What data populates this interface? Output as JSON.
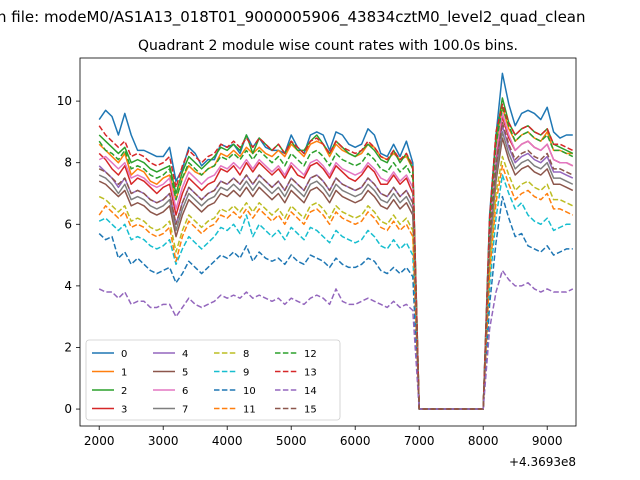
{
  "suptitle": "n file: modeM0/AS1A13_018T01_9000005906_43834cztM0_level2_quad_clean",
  "chart_data": {
    "type": "line",
    "title": "Quadrant 2 module wise count rates with 100.0s bins.",
    "xlabel": "",
    "ylabel": "",
    "x_offset_label": "+4.3693e8",
    "xlim": [
      1700,
      9450
    ],
    "ylim": [
      -0.55,
      11.4
    ],
    "xticks": [
      2000,
      3000,
      4000,
      5000,
      6000,
      7000,
      8000,
      9000
    ],
    "yticks": [
      0,
      2,
      4,
      6,
      8,
      10
    ],
    "grid": false,
    "legend": {
      "placement": "lower-left",
      "ncol": 4
    },
    "gap": {
      "start": 7000,
      "end": 8000,
      "value": 0
    },
    "segments": {
      "seg1": {
        "x_start": 2000,
        "x_end": 6900,
        "step": 100
      },
      "seg2": {
        "x_start": 8000,
        "x_end": 9300,
        "step": 100
      }
    },
    "series": [
      {
        "name": "0",
        "color": "#1f77b4",
        "dash": "solid",
        "seg1_values": [
          9.4,
          9.7,
          9.5,
          8.9,
          9.6,
          8.9,
          8.4,
          8.4,
          8.3,
          8.2,
          8.2,
          8.5,
          7.4,
          7.8,
          8.5,
          8.3,
          7.9,
          8.1,
          8.1,
          8.6,
          8.5,
          8.6,
          8.3,
          8.9,
          8.5,
          8.8,
          8.5,
          8.4,
          8.4,
          8.3,
          8.9,
          8.5,
          8.3,
          8.9,
          9.0,
          8.9,
          8.4,
          9.0,
          8.9,
          8.6,
          8.5,
          8.6,
          9.1,
          8.9,
          8.3,
          8.2,
          8.6,
          8.2,
          8.7,
          8.0
        ],
        "seg2_values": [
          6.3,
          8.9,
          10.9,
          9.9,
          9.2,
          9.6,
          9.7,
          9.6,
          9.4,
          9.8,
          9.0,
          8.8,
          8.9,
          8.9
        ]
      },
      {
        "name": "1",
        "color": "#ff7f0e",
        "dash": "solid",
        "seg1_values": [
          8.6,
          8.4,
          8.2,
          8.0,
          8.3,
          7.6,
          7.8,
          7.7,
          7.4,
          7.3,
          7.5,
          7.6,
          6.8,
          7.5,
          7.9,
          7.7,
          7.6,
          7.8,
          7.9,
          8.3,
          8.2,
          8.4,
          8.2,
          8.5,
          8.3,
          8.5,
          8.3,
          8.2,
          8.4,
          8.2,
          8.6,
          8.4,
          8.2,
          8.6,
          8.7,
          8.6,
          8.2,
          8.6,
          8.4,
          8.3,
          8.2,
          8.3,
          8.6,
          8.5,
          8.2,
          8.1,
          8.3,
          8.1,
          8.2,
          7.8
        ],
        "seg2_values": [
          5.8,
          8.5,
          9.8,
          9.1,
          8.7,
          8.9,
          9.0,
          8.8,
          8.7,
          9.0,
          8.4,
          8.4,
          8.3,
          8.3
        ]
      },
      {
        "name": "2",
        "color": "#2ca02c",
        "dash": "solid",
        "seg1_values": [
          8.9,
          8.7,
          8.5,
          8.3,
          8.5,
          8.0,
          8.1,
          8.0,
          7.8,
          7.7,
          7.8,
          7.9,
          7.0,
          7.7,
          8.2,
          8.0,
          7.8,
          8.0,
          8.2,
          8.5,
          8.4,
          8.6,
          8.4,
          8.9,
          8.3,
          8.8,
          8.6,
          8.4,
          8.6,
          8.3,
          8.7,
          8.4,
          8.4,
          8.7,
          8.9,
          8.6,
          8.3,
          8.7,
          8.5,
          8.3,
          8.2,
          8.4,
          8.6,
          8.4,
          8.1,
          8.0,
          8.4,
          8.0,
          8.3,
          7.8
        ],
        "seg2_values": [
          6.1,
          8.8,
          10.1,
          9.3,
          8.9,
          9.1,
          9.2,
          9.0,
          8.9,
          9.1,
          8.6,
          8.5,
          8.4,
          8.3
        ]
      },
      {
        "name": "3",
        "color": "#d62728",
        "dash": "solid",
        "seg1_values": [
          8.3,
          8.1,
          7.8,
          7.6,
          7.9,
          7.3,
          7.5,
          7.4,
          7.2,
          7.0,
          7.2,
          7.3,
          6.3,
          7.0,
          7.5,
          7.3,
          7.1,
          7.3,
          7.4,
          7.8,
          7.7,
          7.9,
          7.6,
          8.0,
          7.7,
          8.0,
          7.8,
          7.6,
          7.8,
          7.5,
          7.9,
          7.6,
          7.5,
          7.9,
          8.0,
          7.8,
          7.5,
          7.9,
          7.7,
          7.5,
          7.4,
          7.6,
          7.9,
          7.7,
          7.3,
          7.3,
          7.6,
          7.3,
          7.5,
          7.0
        ],
        "seg2_values": [
          5.5,
          8.1,
          9.5,
          8.8,
          8.4,
          8.6,
          8.7,
          8.5,
          8.4,
          8.6,
          8.1,
          8.0,
          8.0,
          7.9
        ]
      },
      {
        "name": "4",
        "color": "#9467bd",
        "dash": "solid",
        "seg1_values": [
          7.9,
          7.7,
          7.5,
          7.2,
          7.5,
          7.0,
          7.1,
          7.0,
          6.8,
          6.7,
          6.8,
          7.0,
          6.0,
          6.7,
          7.2,
          7.0,
          6.8,
          7.0,
          7.1,
          7.4,
          7.3,
          7.5,
          7.3,
          7.6,
          7.3,
          7.6,
          7.4,
          7.2,
          7.4,
          7.1,
          7.5,
          7.3,
          7.1,
          7.5,
          7.6,
          7.4,
          7.1,
          7.5,
          7.3,
          7.2,
          7.1,
          7.2,
          7.5,
          7.3,
          7.0,
          6.9,
          7.2,
          6.9,
          7.1,
          6.7
        ],
        "seg2_values": [
          5.3,
          7.8,
          9.2,
          8.5,
          8.0,
          8.2,
          8.3,
          8.1,
          8.0,
          8.2,
          7.7,
          7.7,
          7.6,
          7.5
        ]
      },
      {
        "name": "5",
        "color": "#8c564b",
        "dash": "solid",
        "seg1_values": [
          7.4,
          7.3,
          7.1,
          6.9,
          7.1,
          6.6,
          6.7,
          6.6,
          6.4,
          6.3,
          6.4,
          6.6,
          5.6,
          6.3,
          6.8,
          6.6,
          6.4,
          6.6,
          6.7,
          7.0,
          6.9,
          7.1,
          6.9,
          7.2,
          6.9,
          7.2,
          7.0,
          6.8,
          7.0,
          6.7,
          7.1,
          6.9,
          6.7,
          7.1,
          7.2,
          7.0,
          6.7,
          7.1,
          6.9,
          6.8,
          6.7,
          6.8,
          7.1,
          6.9,
          6.6,
          6.5,
          6.8,
          6.5,
          6.7,
          6.3
        ],
        "seg2_values": [
          5.0,
          7.4,
          8.8,
          8.1,
          7.6,
          7.8,
          7.9,
          7.7,
          7.6,
          7.8,
          7.3,
          7.3,
          7.2,
          7.1
        ]
      },
      {
        "name": "6",
        "color": "#e377c2",
        "dash": "solid",
        "seg1_values": [
          8.1,
          8.2,
          8.0,
          7.8,
          8.0,
          7.5,
          7.6,
          7.5,
          7.3,
          7.2,
          7.3,
          7.5,
          6.5,
          7.2,
          7.7,
          7.5,
          7.3,
          7.5,
          7.6,
          7.9,
          7.8,
          8.0,
          7.8,
          8.1,
          7.8,
          8.1,
          7.9,
          7.7,
          7.9,
          7.6,
          8.0,
          7.8,
          7.6,
          8.0,
          8.1,
          7.9,
          7.6,
          8.0,
          7.8,
          7.7,
          7.6,
          7.7,
          8.0,
          7.8,
          7.5,
          7.4,
          7.7,
          7.4,
          7.6,
          7.2
        ],
        "seg2_values": [
          5.6,
          8.3,
          9.6,
          8.9,
          8.4,
          8.6,
          8.7,
          8.5,
          8.4,
          8.6,
          8.1,
          8.0,
          8.0,
          7.9
        ]
      },
      {
        "name": "7",
        "color": "#7f7f7f",
        "dash": "solid",
        "seg1_values": [
          7.6,
          7.5,
          7.3,
          7.0,
          7.3,
          6.8,
          6.9,
          6.8,
          6.6,
          6.5,
          6.6,
          6.8,
          5.8,
          6.5,
          7.0,
          6.8,
          6.6,
          6.8,
          6.9,
          7.2,
          7.1,
          7.3,
          7.1,
          7.4,
          7.1,
          7.4,
          7.2,
          7.0,
          7.2,
          6.9,
          7.3,
          7.1,
          6.9,
          7.3,
          7.4,
          7.2,
          6.9,
          7.3,
          7.1,
          7.0,
          6.9,
          7.0,
          7.3,
          7.1,
          6.8,
          6.7,
          7.0,
          6.7,
          6.9,
          6.5
        ],
        "seg2_values": [
          5.1,
          7.6,
          9.0,
          8.3,
          7.8,
          8.0,
          8.1,
          7.9,
          7.8,
          8.0,
          7.5,
          7.5,
          7.4,
          7.3
        ]
      },
      {
        "name": "8",
        "color": "#bcbd22",
        "dash": "dashed",
        "seg1_values": [
          6.9,
          6.8,
          6.6,
          6.4,
          6.6,
          6.1,
          6.2,
          6.1,
          5.9,
          5.8,
          5.9,
          6.1,
          5.1,
          5.8,
          6.3,
          6.1,
          5.9,
          6.1,
          6.2,
          6.5,
          6.4,
          6.6,
          6.4,
          6.7,
          6.4,
          6.7,
          6.5,
          6.3,
          6.5,
          6.2,
          6.6,
          6.4,
          6.2,
          6.6,
          6.7,
          6.5,
          6.2,
          6.6,
          6.4,
          6.3,
          6.2,
          6.3,
          6.6,
          6.4,
          6.1,
          6.0,
          6.3,
          6.0,
          6.2,
          5.8
        ],
        "seg2_values": [
          4.6,
          7.0,
          8.2,
          7.6,
          7.1,
          7.3,
          7.4,
          7.2,
          7.1,
          7.3,
          6.8,
          6.8,
          6.7,
          6.6
        ]
      },
      {
        "name": "9",
        "color": "#17becf",
        "dash": "dashed",
        "seg1_values": [
          6.1,
          6.2,
          6.0,
          5.8,
          6.0,
          5.5,
          5.6,
          5.5,
          5.3,
          5.2,
          5.3,
          5.5,
          4.7,
          5.2,
          5.6,
          5.4,
          5.2,
          5.4,
          5.6,
          5.9,
          5.8,
          6.0,
          5.7,
          6.3,
          5.6,
          6.0,
          5.8,
          5.6,
          5.8,
          5.5,
          5.9,
          5.7,
          5.5,
          5.9,
          5.8,
          5.6,
          5.4,
          5.8,
          5.6,
          5.5,
          5.4,
          5.5,
          5.8,
          5.6,
          5.3,
          5.2,
          5.5,
          5.2,
          5.4,
          5.0
        ],
        "seg2_values": [
          4.0,
          6.2,
          7.6,
          7.0,
          6.5,
          6.7,
          6.3,
          6.1,
          6.0,
          6.2,
          5.8,
          5.9,
          6.0,
          6.0
        ]
      },
      {
        "name": "10",
        "color": "#1f77b4",
        "dash": "dashed",
        "seg1_values": [
          5.7,
          5.5,
          5.6,
          4.9,
          5.1,
          4.7,
          4.9,
          4.7,
          4.5,
          4.4,
          4.5,
          4.6,
          4.1,
          4.4,
          4.8,
          4.6,
          4.4,
          4.6,
          4.8,
          5.0,
          4.9,
          5.1,
          4.9,
          5.3,
          4.8,
          5.1,
          4.9,
          4.8,
          4.9,
          4.7,
          5.0,
          4.8,
          4.7,
          5.0,
          4.9,
          4.8,
          4.6,
          4.9,
          4.7,
          4.6,
          4.6,
          4.7,
          4.9,
          4.8,
          4.5,
          4.4,
          4.6,
          4.4,
          4.6,
          4.3
        ],
        "seg2_values": [
          3.4,
          5.4,
          6.9,
          6.2,
          5.6,
          5.7,
          5.3,
          5.2,
          5.1,
          5.3,
          5.0,
          5.1,
          5.2,
          5.2
        ]
      },
      {
        "name": "11",
        "color": "#ff7f0e",
        "dash": "dashed",
        "seg1_values": [
          6.3,
          6.6,
          6.4,
          6.2,
          6.4,
          5.9,
          6.0,
          5.9,
          5.7,
          5.6,
          5.7,
          5.9,
          4.8,
          5.6,
          6.1,
          5.9,
          5.7,
          5.9,
          6.0,
          6.3,
          6.2,
          6.4,
          6.2,
          6.5,
          6.2,
          6.5,
          6.3,
          6.1,
          6.3,
          6.0,
          6.4,
          6.2,
          6.0,
          6.4,
          6.5,
          6.3,
          6.0,
          6.4,
          6.2,
          6.1,
          6.0,
          6.1,
          6.4,
          6.2,
          5.9,
          5.8,
          6.1,
          5.8,
          6.0,
          5.6
        ],
        "seg2_values": [
          4.4,
          6.7,
          7.9,
          7.3,
          6.8,
          7.0,
          7.1,
          6.9,
          6.8,
          7.0,
          6.5,
          6.5,
          6.4,
          6.3
        ]
      },
      {
        "name": "12",
        "color": "#2ca02c",
        "dash": "dashed",
        "seg1_values": [
          8.7,
          8.4,
          8.3,
          8.1,
          8.4,
          7.8,
          7.9,
          7.8,
          7.6,
          7.5,
          7.6,
          7.8,
          6.8,
          7.5,
          8.0,
          7.8,
          7.6,
          7.8,
          7.9,
          8.2,
          8.1,
          8.3,
          8.1,
          8.4,
          8.1,
          8.4,
          8.2,
          8.0,
          8.2,
          7.9,
          8.3,
          8.1,
          7.9,
          8.3,
          8.4,
          8.2,
          7.9,
          8.3,
          8.1,
          8.0,
          7.9,
          8.0,
          8.3,
          8.1,
          7.8,
          7.7,
          8.0,
          7.7,
          7.9,
          7.5
        ],
        "seg2_values": [
          5.9,
          8.6,
          9.8,
          9.2,
          8.7,
          8.9,
          9.0,
          8.8,
          8.7,
          8.9,
          8.4,
          8.4,
          8.3,
          8.2
        ]
      },
      {
        "name": "13",
        "color": "#d62728",
        "dash": "dashed",
        "seg1_values": [
          9.2,
          8.9,
          8.7,
          8.5,
          8.7,
          8.2,
          8.3,
          8.2,
          8.0,
          7.9,
          8.0,
          8.2,
          7.2,
          7.9,
          8.4,
          8.2,
          8.0,
          8.2,
          8.3,
          8.6,
          8.5,
          8.7,
          8.5,
          8.8,
          8.5,
          8.8,
          8.6,
          8.4,
          8.6,
          8.3,
          8.7,
          8.5,
          8.3,
          8.7,
          8.8,
          8.6,
          8.3,
          8.7,
          8.5,
          8.4,
          8.3,
          8.4,
          8.7,
          8.5,
          8.2,
          8.1,
          8.4,
          8.1,
          8.3,
          7.9
        ],
        "seg2_values": [
          6.2,
          9.0,
          9.9,
          9.3,
          8.9,
          9.1,
          9.2,
          9.0,
          8.9,
          9.1,
          8.6,
          8.6,
          8.5,
          8.4
        ]
      },
      {
        "name": "14",
        "color": "#9467bd",
        "dash": "dashed",
        "seg1_values": [
          3.9,
          3.8,
          3.8,
          3.6,
          3.8,
          3.4,
          3.5,
          3.5,
          3.3,
          3.3,
          3.4,
          3.4,
          3.0,
          3.3,
          3.6,
          3.4,
          3.3,
          3.4,
          3.5,
          3.7,
          3.6,
          3.7,
          3.6,
          3.8,
          3.6,
          3.7,
          3.6,
          3.5,
          3.6,
          3.4,
          3.6,
          3.5,
          3.4,
          3.6,
          3.7,
          3.6,
          3.4,
          3.9,
          3.5,
          3.4,
          3.4,
          3.5,
          3.6,
          3.5,
          3.4,
          3.3,
          3.5,
          3.3,
          3.4,
          3.2
        ],
        "seg2_values": [
          2.6,
          3.8,
          4.5,
          4.2,
          4.0,
          4.0,
          4.1,
          3.9,
          3.8,
          3.9,
          3.8,
          3.8,
          3.8,
          3.9
        ]
      },
      {
        "name": "15",
        "color": "#8c564b",
        "dash": "dashed",
        "seg1_values": [
          7.8,
          7.7,
          7.5,
          7.3,
          7.5,
          7.0,
          7.1,
          7.0,
          6.8,
          6.7,
          6.8,
          7.0,
          6.0,
          6.7,
          7.2,
          7.0,
          6.8,
          7.0,
          7.1,
          7.4,
          7.3,
          7.5,
          7.3,
          7.6,
          7.3,
          7.6,
          7.4,
          7.2,
          7.4,
          7.1,
          7.5,
          7.3,
          7.1,
          7.5,
          7.6,
          7.4,
          7.1,
          7.5,
          7.3,
          7.2,
          7.1,
          7.2,
          7.5,
          7.3,
          7.0,
          6.9,
          7.2,
          6.9,
          7.1,
          6.7
        ],
        "seg2_values": [
          5.4,
          7.9,
          9.3,
          8.6,
          8.1,
          8.3,
          8.4,
          8.2,
          8.1,
          8.3,
          7.8,
          7.8,
          7.7,
          7.6
        ]
      }
    ]
  }
}
